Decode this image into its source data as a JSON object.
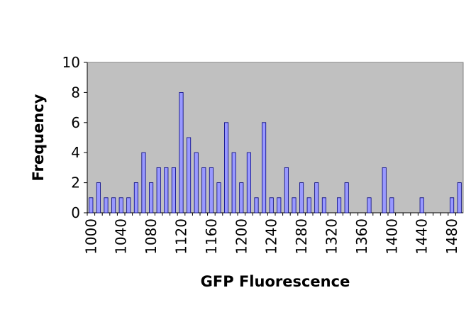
{
  "chart_data": {
    "type": "bar",
    "x_label": "GFP Fluorescence",
    "y_label": "Frequency",
    "categories": [
      "1000",
      null,
      null,
      null,
      "1040",
      null,
      null,
      null,
      "1080",
      null,
      null,
      null,
      "1120",
      null,
      null,
      null,
      "1160",
      null,
      null,
      null,
      "1200",
      null,
      null,
      null,
      "1240",
      null,
      null,
      null,
      "1280",
      null,
      null,
      null,
      "1320",
      null,
      null,
      null,
      "1360",
      null,
      null,
      null,
      "1400",
      null,
      null,
      null,
      "1440",
      null,
      null,
      null,
      "1480",
      null
    ],
    "values": [
      1,
      2,
      1,
      1,
      1,
      1,
      2,
      4,
      2,
      3,
      3,
      3,
      8,
      5,
      4,
      3,
      3,
      2,
      6,
      4,
      2,
      4,
      1,
      6,
      1,
      1,
      3,
      1,
      2,
      1,
      2,
      1,
      0,
      1,
      2,
      0,
      0,
      1,
      0,
      3,
      1,
      0,
      0,
      0,
      1,
      0,
      0,
      0,
      1,
      2
    ],
    "color": "#9999ff",
    "plot_background": "#c0c0c0",
    "ylim": [
      0,
      10
    ],
    "yticks": [
      0,
      2,
      4,
      6,
      8,
      10
    ],
    "grid": false
  }
}
